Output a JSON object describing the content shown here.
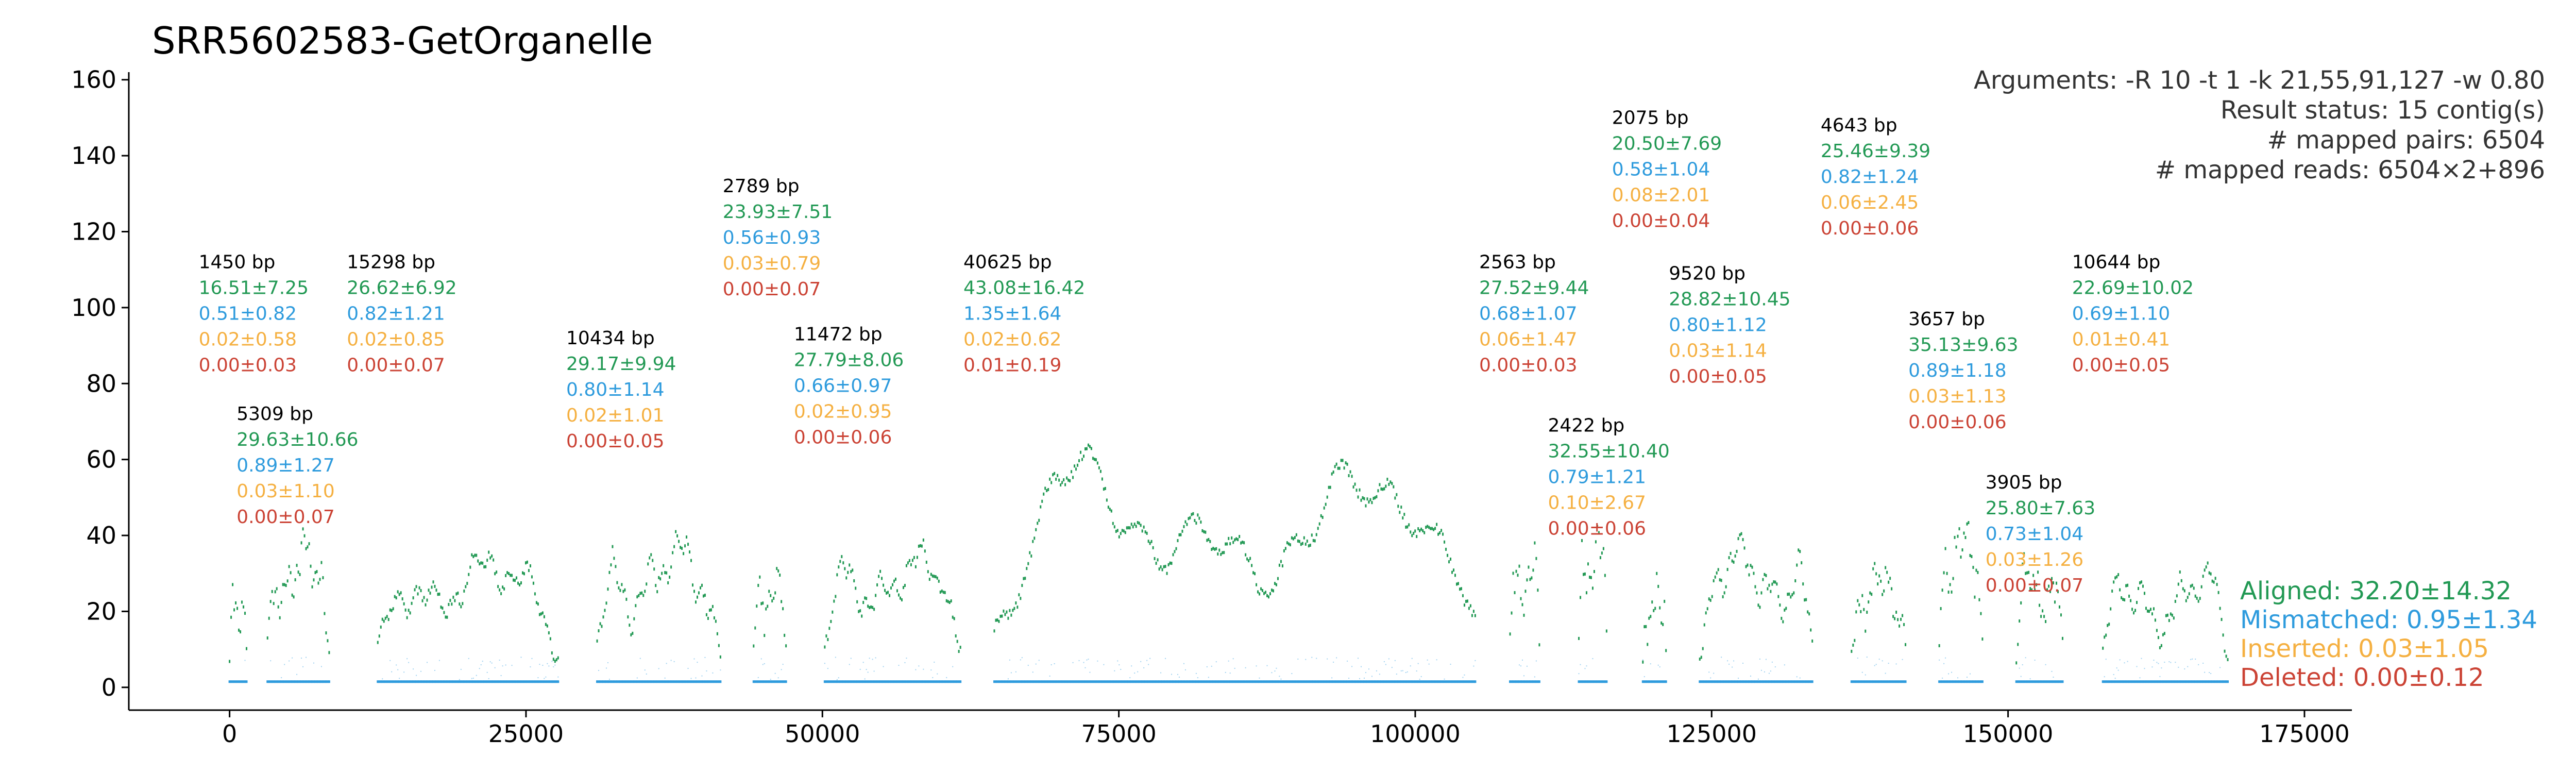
{
  "chart_data": {
    "type": "scatter",
    "title": "SRR5602583-GetOrganelle",
    "xlabel": "",
    "ylabel": "",
    "xlim": [
      -8500,
      179000
    ],
    "ylim": [
      -6,
      162
    ],
    "x_ticks": [
      0,
      25000,
      50000,
      75000,
      100000,
      125000,
      150000,
      175000
    ],
    "x_tick_labels": [
      "0",
      "25000",
      "50000",
      "75000",
      "100000",
      "125000",
      "150000",
      "175000"
    ],
    "y_ticks": [
      0,
      20,
      40,
      60,
      80,
      100,
      120,
      140,
      160
    ],
    "y_tick_labels": [
      "0",
      "20",
      "40",
      "60",
      "80",
      "100",
      "120",
      "140",
      "160"
    ],
    "grid": false,
    "colors": {
      "aligned": "#229954",
      "mismatched": "#2E9BDD",
      "inserted": "#F5B041",
      "deleted": "#CB4335",
      "size": "#000000",
      "info": "#333333"
    },
    "info_lines": [
      "Arguments: -R 10 -t 1 -k 21,55,91,127 -w 0.80",
      "Result status: 15 contig(s)",
      "# mapped pairs: 6504",
      "# mapped reads: 6504×2+896"
    ],
    "legend": {
      "placement": "lower-right",
      "entries": [
        {
          "label": "Aligned: 32.20±14.32",
          "color": "#229954"
        },
        {
          "label": "Mismatched: 0.95±1.34",
          "color": "#2E9BDD"
        },
        {
          "label": "Inserted: 0.03±1.05",
          "color": "#F5B041"
        },
        {
          "label": "Deleted: 0.00±0.12",
          "color": "#CB4335"
        }
      ]
    },
    "contigs": [
      {
        "start": 0,
        "end": 1450,
        "base": 20,
        "amp": 8,
        "label_y": 112,
        "size": "1450 bp",
        "aligned": "16.51±7.25",
        "mismatched": "0.51±0.82",
        "inserted": "0.02±0.58",
        "deleted": "0.00±0.03"
      },
      {
        "start": 3200,
        "end": 8509,
        "base": 30,
        "amp": 12,
        "label_y": 72,
        "size": "5309 bp",
        "aligned": "29.63±10.66",
        "mismatched": "0.89±1.27",
        "inserted": "0.03±1.10",
        "deleted": "0.00±0.07"
      },
      {
        "start": 12500,
        "end": 27798,
        "base": 27,
        "amp": 10,
        "label_y": 112,
        "size": "15298 bp",
        "aligned": "26.62±6.92",
        "mismatched": "0.82±1.21",
        "inserted": "0.02±0.85",
        "deleted": "0.00±0.07"
      },
      {
        "start": 31000,
        "end": 41434,
        "base": 29,
        "amp": 13,
        "label_y": 92,
        "size": "10434 bp",
        "aligned": "29.17±9.94",
        "mismatched": "0.80±1.14",
        "inserted": "0.02±1.01",
        "deleted": "0.00±0.05"
      },
      {
        "start": 44200,
        "end": 46989,
        "base": 24,
        "amp": 9,
        "label_y": 132,
        "size": "2789 bp",
        "aligned": "23.93±7.51",
        "mismatched": "0.56±0.93",
        "inserted": "0.03±0.79",
        "deleted": "0.00±0.07"
      },
      {
        "start": 50200,
        "end": 61672,
        "base": 28,
        "amp": 10,
        "label_y": 93,
        "size": "11472 bp",
        "aligned": "27.79±8.06",
        "mismatched": "0.66±0.97",
        "inserted": "0.02±0.95",
        "deleted": "0.00±0.06"
      },
      {
        "start": 64500,
        "end": 105125,
        "base": 43,
        "amp": 20,
        "label_y": 112,
        "size": "40625 bp",
        "aligned": "43.08±16.42",
        "mismatched": "1.35±1.64",
        "inserted": "0.02±0.62",
        "deleted": "0.01±0.19"
      },
      {
        "start": 108000,
        "end": 110563,
        "base": 28,
        "amp": 11,
        "label_y": 112,
        "size": "2563 bp",
        "aligned": "27.52±9.44",
        "mismatched": "0.68±1.07",
        "inserted": "0.06±1.47",
        "deleted": "0.00±0.03"
      },
      {
        "start": 113800,
        "end": 116222,
        "base": 33,
        "amp": 12,
        "label_y": 69,
        "size": "2422 bp",
        "aligned": "32.55±10.40",
        "mismatched": "0.79±1.21",
        "inserted": "0.10±2.67",
        "deleted": "0.00±0.06"
      },
      {
        "start": 119200,
        "end": 121275,
        "base": 21,
        "amp": 9,
        "label_y": 150,
        "size": "2075 bp",
        "aligned": "20.50±7.69",
        "mismatched": "0.58±1.04",
        "inserted": "0.08±2.01",
        "deleted": "0.00±0.04"
      },
      {
        "start": 124000,
        "end": 133520,
        "base": 29,
        "amp": 12,
        "label_y": 109,
        "size": "9520 bp",
        "aligned": "28.82±10.45",
        "mismatched": "0.80±1.12",
        "inserted": "0.03±1.14",
        "deleted": "0.00±0.05"
      },
      {
        "start": 136800,
        "end": 141443,
        "base": 25,
        "amp": 10,
        "label_y": 148,
        "size": "4643 bp",
        "aligned": "25.46±9.39",
        "mismatched": "0.82±1.24",
        "inserted": "0.06±2.45",
        "deleted": "0.00±0.06"
      },
      {
        "start": 144200,
        "end": 147857,
        "base": 35,
        "amp": 12,
        "label_y": 97,
        "size": "3657 bp",
        "aligned": "35.13±9.63",
        "mismatched": "0.89±1.18",
        "inserted": "0.03±1.13",
        "deleted": "0.00±0.06"
      },
      {
        "start": 150700,
        "end": 154605,
        "base": 26,
        "amp": 10,
        "label_y": 54,
        "size": "3905 bp",
        "aligned": "25.80±7.63",
        "mismatched": "0.73±1.04",
        "inserted": "0.03±1.26",
        "deleted": "0.00±0.07"
      },
      {
        "start": 158000,
        "end": 168644,
        "base": 23,
        "amp": 12,
        "label_y": 112,
        "size": "10644 bp",
        "aligned": "22.69±10.02",
        "mismatched": "0.69±1.10",
        "inserted": "0.01±0.41",
        "deleted": "0.00±0.05"
      }
    ]
  }
}
